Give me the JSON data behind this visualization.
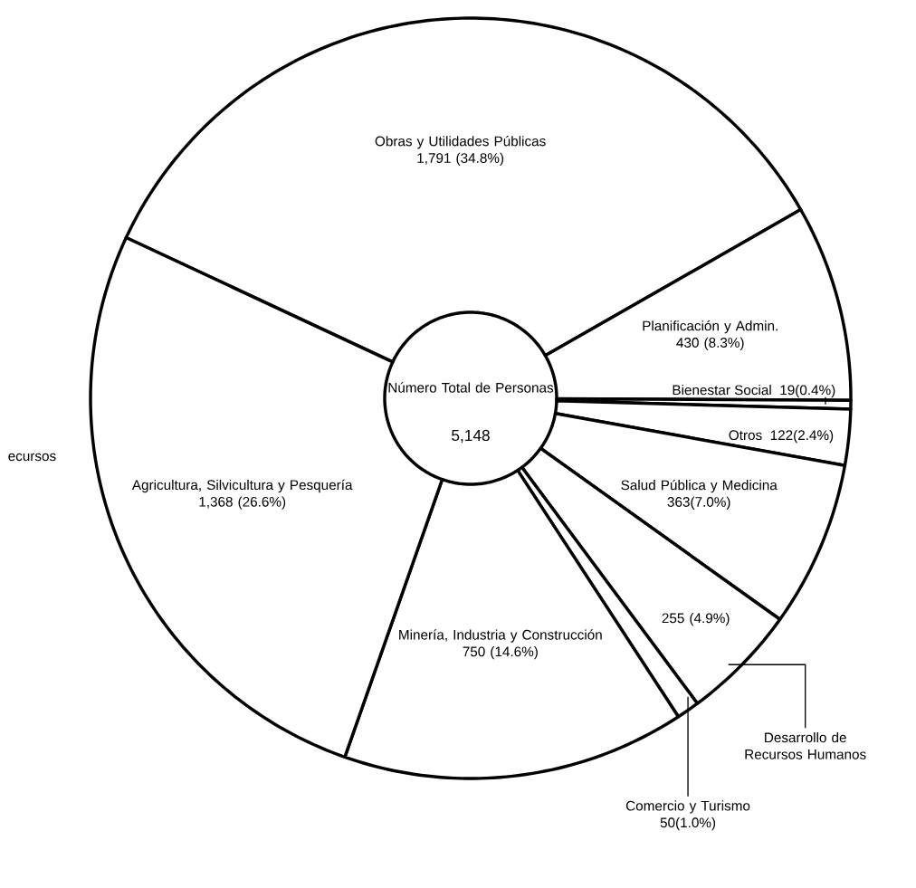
{
  "chart_data": {
    "type": "donut",
    "title": "Número Total de Personas",
    "categories": [
      "Obras y Utilidades Públicas",
      "Planificación y Admin.",
      "Bienestar Social",
      "Otros",
      "Salud Pública y Medicina",
      "Desarrollo de Recursos Humanos",
      "Comercio y Turismo",
      "Minería, Industria y Construcción",
      "Agricultura, Silvicultura y Pesquería"
    ],
    "values": [
      1791,
      430,
      19,
      122,
      363,
      255,
      50,
      750,
      1368
    ],
    "value_labels": [
      "1,791 (34.8%)",
      "430 (8.3%)",
      "19(0.4%)",
      "122(2.4%)",
      "363(7.0%)",
      "255 (4.9%)",
      "50(1.0%)",
      "750 (14.6%)",
      "1,368 (26.6%)"
    ],
    "colors": [
      "#ffffff",
      "#ffffff",
      "#ffffff",
      "#ffffff",
      "#ffffff",
      "#ffffff",
      "#ffffff",
      "#ffffff",
      "#ffffff"
    ],
    "annotations": [
      "5,148",
      "ecursos"
    ]
  }
}
